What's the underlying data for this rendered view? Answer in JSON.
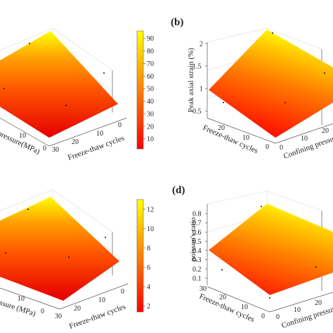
{
  "chart_data": [
    {
      "id": "a",
      "type": "surface3d",
      "panel_label": "",
      "zlabel": "",
      "xlabel": "Freeze-thaw cycles",
      "ylabel": "pressure(MPa)",
      "x_ticks": [
        "30",
        "20",
        "10",
        "0"
      ],
      "y_ticks": [
        "10",
        "0"
      ],
      "z_ticks": [],
      "colorbar": {
        "ticks": [
          "10",
          "20",
          "30",
          "40",
          "50",
          "60",
          "70",
          "80",
          "90"
        ],
        "min": 2,
        "max": 96
      },
      "surface": {
        "z_at_max_pressure_0_cycles": 95,
        "z_at_max_pressure_30_cycles": 70,
        "z_at_0_pressure_0_cycles": 35,
        "z_at_0_pressure_30_cycles": 4
      }
    },
    {
      "id": "b",
      "type": "surface3d",
      "panel_label": "(b)",
      "zlabel": "Peak axial strain (%)",
      "xlabel": "Freeze-thaw cycles",
      "ylabel": "Confining pressure",
      "x_ticks": [
        "20",
        "10",
        "0"
      ],
      "y_ticks": [
        "0",
        "10",
        "20"
      ],
      "z_ticks": [
        "0.5",
        "1",
        "1.5",
        "2"
      ],
      "zlim": [
        0.5,
        2
      ],
      "surface": {
        "z_at_max_pressure_0_cycles": 2.0,
        "z_at_0_pressure_0_cycles": 0.8,
        "z_at_0_pressure_30_cycles": 0.55,
        "z_at_max_pressure_30_cycles": 1.75
      }
    },
    {
      "id": "c",
      "type": "surface3d",
      "panel_label": "",
      "zlabel": "",
      "xlabel": "Freeze-thaw cycles",
      "ylabel": "essure (MPa)",
      "x_ticks": [
        "30",
        "20",
        "10",
        "0"
      ],
      "y_ticks": [
        "10",
        "0"
      ],
      "z_ticks": [],
      "colorbar": {
        "ticks": [
          "2",
          "4",
          "6",
          "8",
          "10",
          "12"
        ],
        "min": 1.4,
        "max": 13
      },
      "surface": {
        "z_at_max_pressure_0_cycles": 12.8,
        "z_at_max_pressure_30_cycles": 9.5,
        "z_at_0_pressure_0_cycles": 5,
        "z_at_0_pressure_30_cycles": 1.8
      }
    },
    {
      "id": "d",
      "type": "surface3d",
      "panel_label": "(d)",
      "zlabel": "poisson's ratio",
      "xlabel": "Freeze-thaw cycles",
      "ylabel": "Confining pressure",
      "x_ticks": [
        "30",
        "20",
        "10",
        "0"
      ],
      "y_ticks": [
        "0",
        "10",
        "20"
      ],
      "z_ticks": [
        "0.1",
        "0.2",
        "0.3",
        "0.4",
        "0.5",
        "0.6",
        "0.7",
        "0.8"
      ],
      "zlim": [
        0.1,
        0.8
      ],
      "surface": {
        "z_at_max_pressure_0_cycles": 0.78,
        "z_at_0_pressure_0_cycles": 0.42,
        "z_at_0_pressure_30_cycles": 0.3,
        "z_at_max_pressure_30_cycles": 0.62
      }
    }
  ],
  "colormap": [
    "#ff0000",
    "#ff4000",
    "#ff8000",
    "#ffbf00",
    "#ffff00"
  ]
}
